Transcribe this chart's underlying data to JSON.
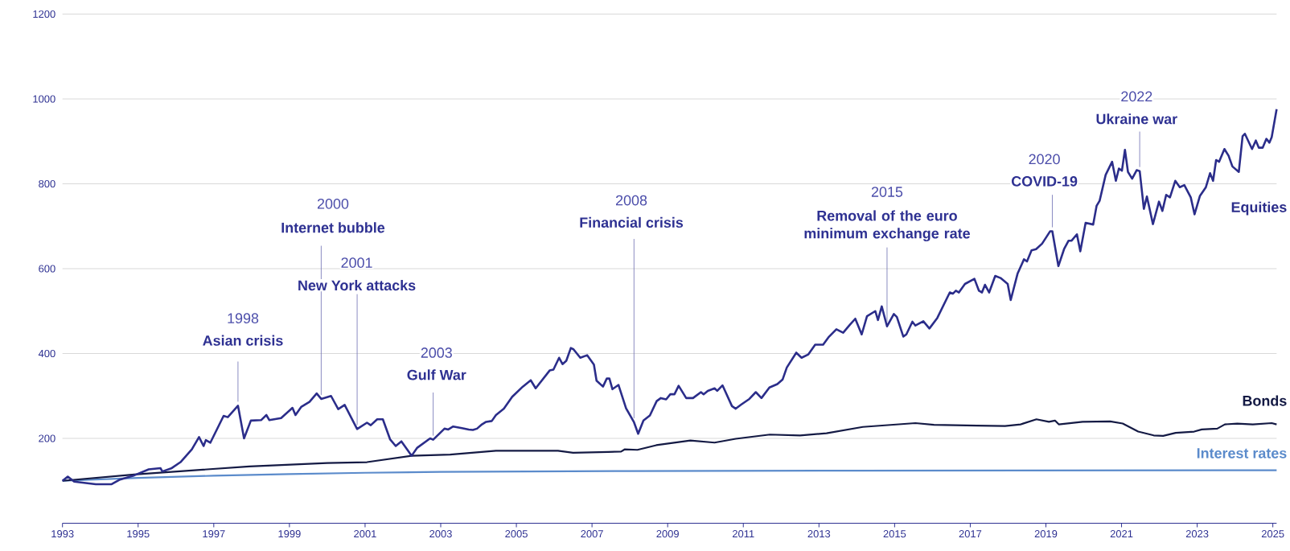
{
  "chart_data": {
    "type": "line",
    "xlim": [
      1993,
      2025.1
    ],
    "ylim": [
      0,
      1200
    ],
    "xticks": [
      1993,
      1995,
      1997,
      1999,
      2001,
      2003,
      2005,
      2007,
      2009,
      2011,
      2013,
      2015,
      2017,
      2019,
      2021,
      2023,
      2025
    ],
    "yticks": [
      200,
      400,
      600,
      800,
      1000,
      1200
    ],
    "grid": "y",
    "marker": "none",
    "line_style": "solid",
    "series": [
      {
        "name": "Equities",
        "color": "#2b2d8a",
        "x": [
          1993.0,
          1993.14,
          1993.31,
          1993.88,
          1994.3,
          1994.52,
          1994.9,
          1995.28,
          1995.59,
          1995.64,
          1995.89,
          1996.12,
          1996.42,
          1996.61,
          1996.73,
          1996.79,
          1996.91,
          1997.26,
          1997.37,
          1997.64,
          1997.8,
          1997.98,
          1998.25,
          1998.39,
          1998.47,
          1998.78,
          1999.08,
          1999.16,
          1999.31,
          1999.53,
          1999.72,
          1999.84,
          2000.1,
          2000.29,
          2000.46,
          2000.79,
          2001.05,
          2001.15,
          2001.32,
          2001.47,
          2001.66,
          2001.81,
          2001.96,
          2002.23,
          2002.38,
          2002.72,
          2002.8,
          2003.1,
          2003.2,
          2003.33,
          2003.56,
          2003.74,
          2003.85,
          2003.96,
          2004.09,
          2004.2,
          2004.35,
          2004.46,
          2004.67,
          2004.89,
          2005.17,
          2005.38,
          2005.51,
          2005.88,
          2005.98,
          2006.13,
          2006.22,
          2006.32,
          2006.44,
          2006.51,
          2006.69,
          2006.87,
          2007.05,
          2007.12,
          2007.29,
          2007.39,
          2007.46,
          2007.54,
          2007.7,
          2007.9,
          2008.11,
          2008.22,
          2008.36,
          2008.53,
          2008.71,
          2008.82,
          2008.96,
          2009.07,
          2009.18,
          2009.29,
          2009.49,
          2009.67,
          2009.88,
          2009.95,
          2010.06,
          2010.24,
          2010.31,
          2010.45,
          2010.7,
          2010.8,
          2010.95,
          2011.16,
          2011.33,
          2011.48,
          2011.69,
          2011.9,
          2012.04,
          2012.15,
          2012.4,
          2012.54,
          2012.72,
          2012.9,
          2013.11,
          2013.25,
          2013.46,
          2013.64,
          2013.81,
          2013.96,
          2014.13,
          2014.27,
          2014.49,
          2014.56,
          2014.66,
          2014.8,
          2014.98,
          2015.06,
          2015.23,
          2015.31,
          2015.47,
          2015.55,
          2015.76,
          2015.92,
          2016.13,
          2016.46,
          2016.54,
          2016.62,
          2016.7,
          2016.86,
          2017.11,
          2017.23,
          2017.31,
          2017.39,
          2017.5,
          2017.66,
          2017.8,
          2017.99,
          2018.07,
          2018.25,
          2018.42,
          2018.5,
          2018.62,
          2018.74,
          2018.9,
          2019.11,
          2019.17,
          2019.33,
          2019.48,
          2019.6,
          2019.68,
          2019.82,
          2019.91,
          2020.05,
          2020.25,
          2020.34,
          2020.42,
          2020.58,
          2020.75,
          2020.85,
          2020.93,
          2021.01,
          2021.09,
          2021.17,
          2021.28,
          2021.4,
          2021.48,
          2021.59,
          2021.67,
          2021.83,
          2021.99,
          2022.08,
          2022.18,
          2022.28,
          2022.42,
          2022.54,
          2022.66,
          2022.83,
          2022.93,
          2023.07,
          2023.23,
          2023.34,
          2023.42,
          2023.5,
          2023.58,
          2023.72,
          2023.83,
          2023.93,
          2024.1,
          2024.2,
          2024.26,
          2024.45,
          2024.55,
          2024.63,
          2024.73,
          2024.83,
          2024.91,
          2024.97,
          2025.1
        ],
        "values": [
          100,
          110,
          98,
          92,
          92,
          103,
          113,
          127,
          130,
          122,
          130,
          144,
          174,
          203,
          182,
          196,
          190,
          253,
          250,
          277,
          200,
          242,
          243,
          255,
          243,
          248,
          272,
          255,
          274,
          286,
          306,
          293,
          300,
          269,
          279,
          222,
          237,
          231,
          245,
          245,
          198,
          182,
          193,
          159,
          178,
          200,
          197,
          223,
          221,
          228,
          224,
          221,
          220,
          223,
          233,
          239,
          241,
          255,
          270,
          298,
          322,
          337,
          318,
          360,
          362,
          390,
          375,
          383,
          413,
          410,
          390,
          396,
          374,
          336,
          322,
          341,
          341,
          316,
          326,
          271,
          238,
          211,
          242,
          254,
          288,
          295,
          292,
          304,
          304,
          324,
          295,
          295,
          309,
          304,
          312,
          318,
          312,
          325,
          276,
          270,
          280,
          293,
          309,
          295,
          320,
          328,
          339,
          367,
          402,
          390,
          398,
          421,
          421,
          438,
          457,
          449,
          467,
          482,
          445,
          488,
          500,
          479,
          511,
          464,
          493,
          486,
          440,
          445,
          475,
          466,
          476,
          459,
          484,
          544,
          541,
          548,
          544,
          564,
          576,
          548,
          544,
          562,
          544,
          583,
          578,
          564,
          526,
          588,
          622,
          617,
          643,
          646,
          659,
          688,
          688,
          606,
          646,
          666,
          666,
          681,
          641,
          708,
          704,
          748,
          760,
          821,
          852,
          807,
          836,
          831,
          880,
          828,
          812,
          832,
          830,
          741,
          770,
          705,
          758,
          736,
          774,
          768,
          807,
          792,
          797,
          768,
          728,
          771,
          792,
          825,
          807,
          856,
          852,
          882,
          866,
          841,
          828,
          912,
          918,
          882,
          902,
          885,
          885,
          906,
          897,
          910,
          976
        ]
      },
      {
        "name": "Bonds",
        "color": "#141a44",
        "x": [
          1993.0,
          1994.9,
          1997.94,
          2000.0,
          2001.05,
          2002.23,
          2003.25,
          2004.46,
          2005.38,
          2006.1,
          2006.5,
          2007.43,
          2007.77,
          2007.86,
          2008.2,
          2008.7,
          2009.6,
          2010.24,
          2010.8,
          2011.7,
          2012.5,
          2013.2,
          2014.16,
          2015.55,
          2016.04,
          2017.18,
          2017.92,
          2018.33,
          2018.75,
          2019.08,
          2019.24,
          2019.34,
          2019.97,
          2020.7,
          2021.03,
          2021.44,
          2021.85,
          2022.1,
          2022.43,
          2022.92,
          2023.12,
          2023.53,
          2023.73,
          2024.06,
          2024.47,
          2024.97,
          2025.1
        ],
        "values": [
          100,
          115,
          134,
          142,
          144,
          159,
          162,
          171,
          171,
          171,
          166,
          168,
          169,
          174,
          173,
          184,
          195,
          190,
          199,
          209,
          207,
          212,
          227,
          236,
          232,
          230,
          229,
          233,
          245,
          239,
          242,
          233,
          239,
          240,
          235,
          216,
          207,
          206,
          213,
          216,
          221,
          223,
          233,
          235,
          233,
          236,
          233
        ]
      },
      {
        "name": "Interest rates",
        "color": "#5b8bcb",
        "x": [
          1993.0,
          1995.0,
          1997.0,
          1999.0,
          2001.0,
          2003.0,
          2008.0,
          2014.0,
          2025.1
        ],
        "values": [
          100,
          107,
          112,
          116,
          119,
          121,
          123,
          124,
          125
        ]
      }
    ],
    "annotations": [
      "1998",
      {
        "text": "Asian crisis",
        "x": 1997.64,
        "y": 277
      },
      "2000",
      {
        "text": "Internet bubble",
        "x": 1999.84,
        "y": 293
      },
      "2001",
      {
        "text": "New York attacks",
        "x": 2000.79,
        "y": 222
      },
      "2003",
      {
        "text": "Gulf War",
        "x": 2002.8,
        "y": 197
      },
      "2008",
      {
        "text": "Financial crisis",
        "x": 2008.11,
        "y": 238
      },
      "2015",
      {
        "text": "Removal of the euro minimum exchange rate",
        "x": 2014.8,
        "y": 464
      },
      "2020",
      {
        "text": "COVID-19",
        "x": 2019.17,
        "y": 688
      },
      "2022",
      {
        "text": "Ukraine war",
        "x": 2021.48,
        "y": 830
      }
    ]
  }
}
